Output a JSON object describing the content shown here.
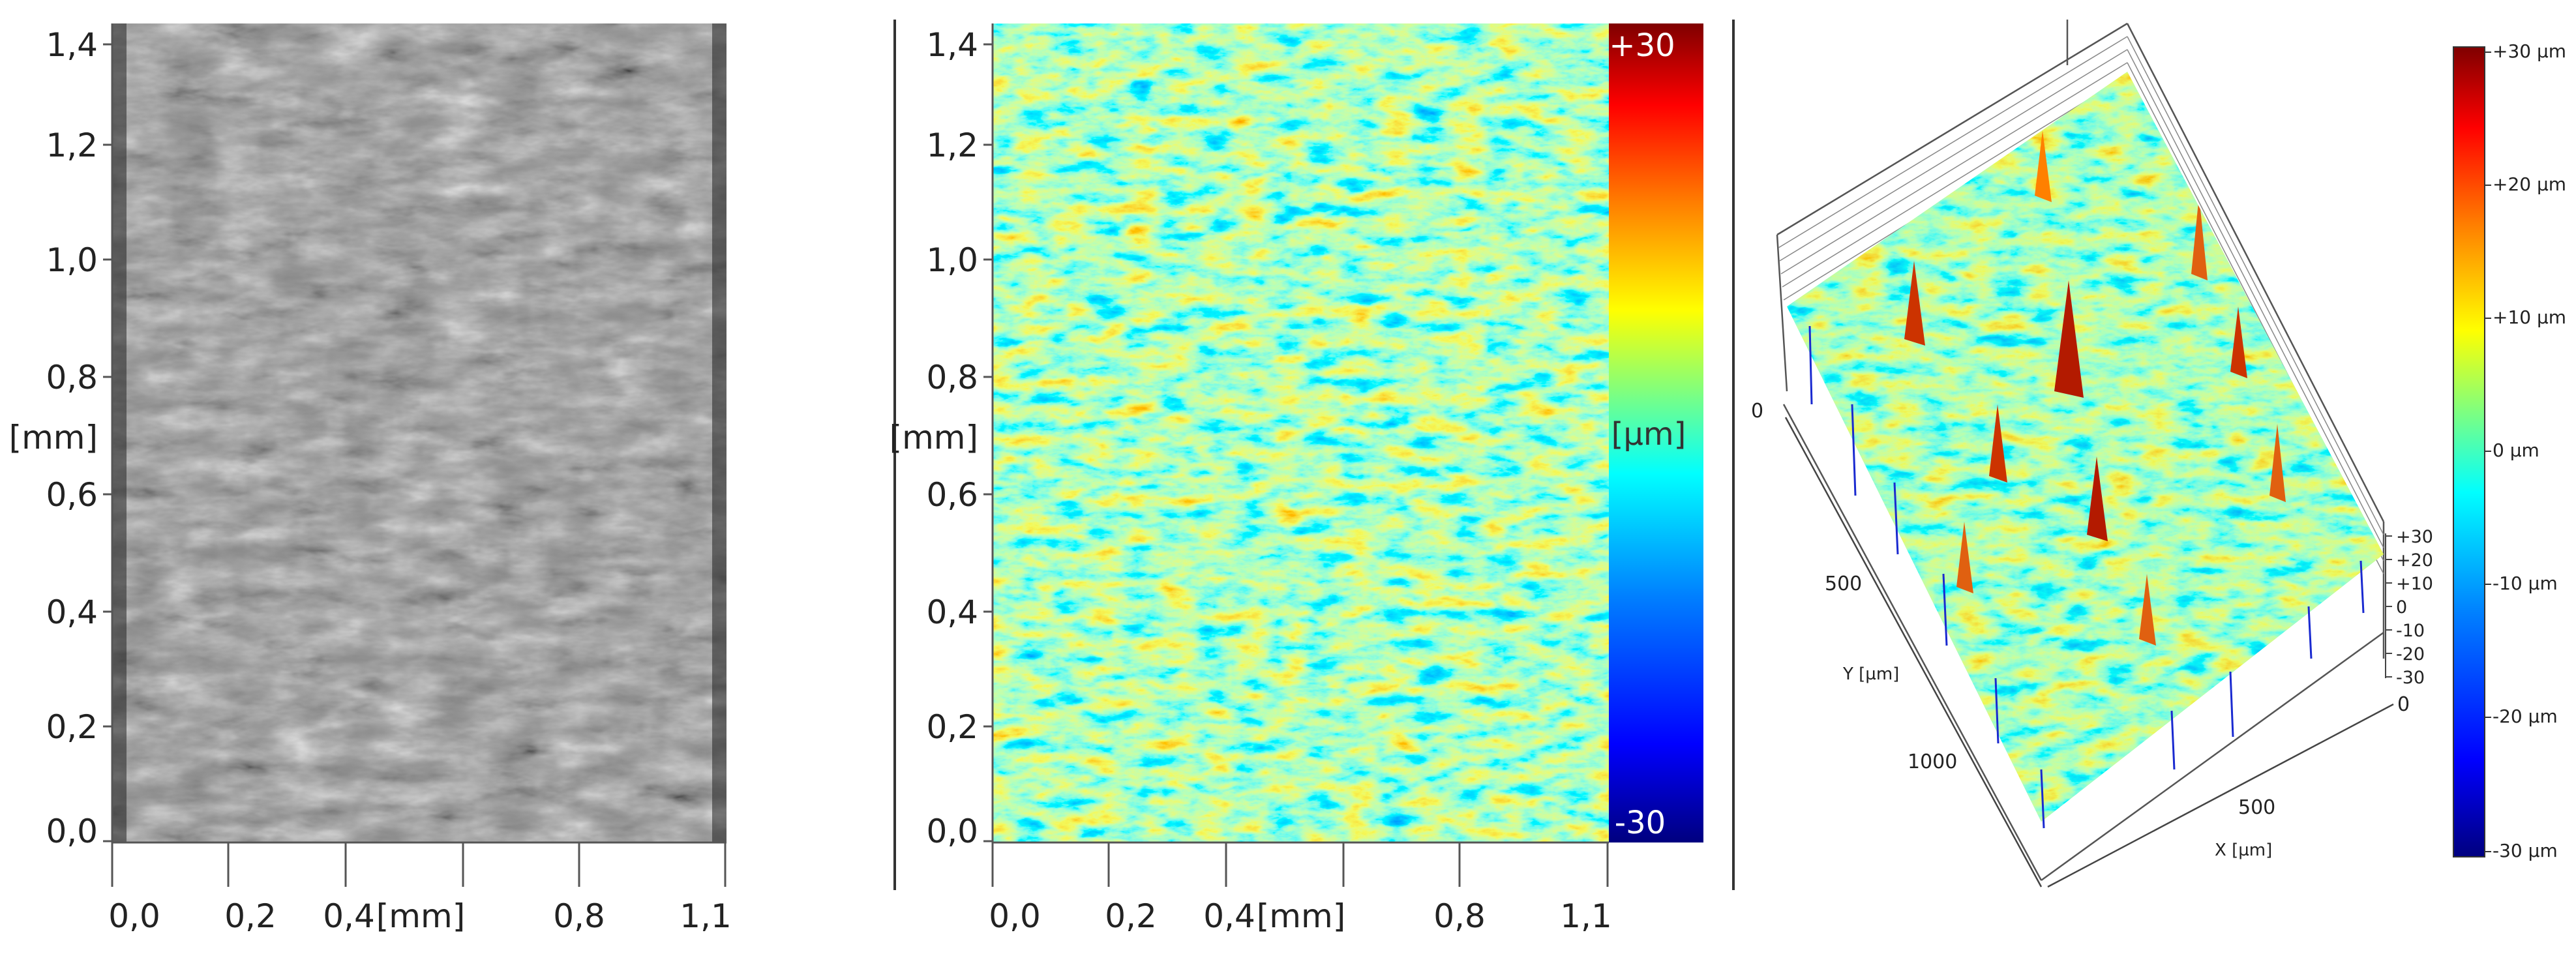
{
  "panel_a": {
    "y_ticks": [
      "1,4",
      "1,2",
      "1,0",
      "0,8",
      "0,6",
      "0,4",
      "0,2",
      "0,0"
    ],
    "y_unit": "[mm]",
    "x_ticks": [
      "0,0",
      "0,2",
      "0,4",
      "0,8",
      "1,1"
    ],
    "x_unit": "[mm]"
  },
  "panel_b": {
    "y_ticks": [
      "1,4",
      "1,2",
      "1,0",
      "0,8",
      "0,6",
      "0,4",
      "0,2",
      "0,0"
    ],
    "y_unit": "[mm]",
    "x_ticks": [
      "0,0",
      "0,2",
      "0,4",
      "0,8",
      "1,1"
    ],
    "x_unit": "[mm]",
    "colorbar_max": "+30",
    "colorbar_min": "-30",
    "colorbar_unit": "[µm]"
  },
  "panel_c": {
    "y_axis_label": "Y [µm]",
    "x_axis_label": "X [µm]",
    "y_axis_ticks": [
      "0",
      "500",
      "1000"
    ],
    "x_axis_ticks": [
      "0",
      "500"
    ],
    "z_axis_ticks": [
      "+30",
      "+20",
      "+10",
      "0",
      "-10",
      "-20",
      "-30"
    ],
    "colorbar_ticks": [
      "+30 µm",
      "+20 µm",
      "+10 µm",
      "0 µm",
      "-10 µm",
      "-20 µm",
      "-30 µm"
    ]
  },
  "colors": {
    "jet": [
      "#00007f",
      "#0000ff",
      "#007fff",
      "#00ffff",
      "#7fff7f",
      "#ffff00",
      "#ff7f00",
      "#ff0000",
      "#7f0000"
    ],
    "micrograph_base": "#8c8c8c"
  }
}
